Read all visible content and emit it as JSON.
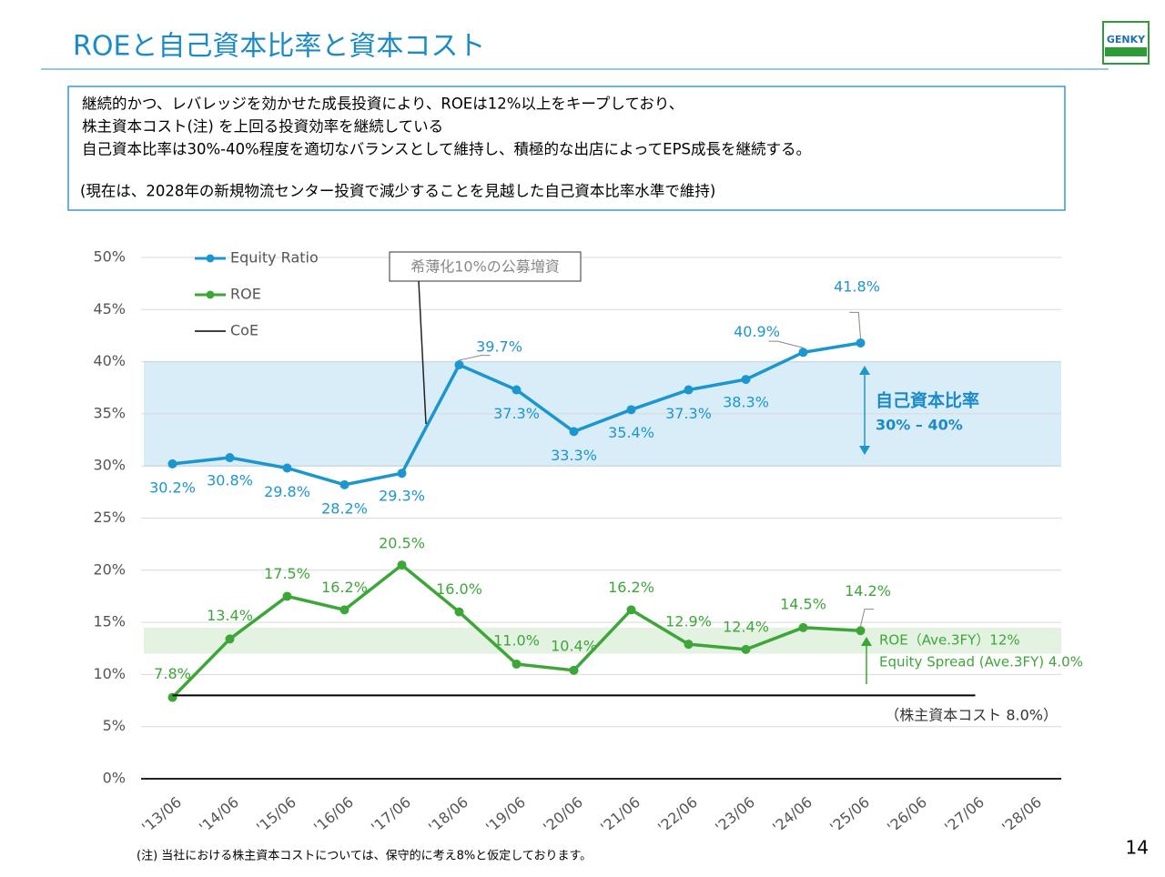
{
  "header": {
    "title": "ROEと自己資本比率と資本コスト",
    "logo": "GENKY"
  },
  "text_box": {
    "lines": [
      "継続的かつ、レバレッジを効かせた成長投資により、ROEは12%以上をキープしており、",
      "株主資本コスト(注) を上回る投資効率を継続している",
      "自己資本比率は30%-40%程度を適切なバランスとして維持し、積極的な出店によってEPS成長を継続する。",
      "(現在は、2028年の新規物流センター投資で減少することを見越した自己資本比率水準で維持)"
    ]
  },
  "footnote": "(注) 当社における株主資本コストについては、保守的に考え8%と仮定しております。",
  "page_number": "14",
  "chart_data": {
    "type": "line",
    "categories": [
      "'13/06",
      "'14/06",
      "'15/06",
      "'16/06",
      "'17/06",
      "'18/06",
      "'19/06",
      "'20/06",
      "'21/06",
      "'22/06",
      "'23/06",
      "'24/06",
      "'25/06",
      "'26/06",
      "'27/06",
      "'28/06"
    ],
    "series": [
      {
        "name": "Equity Ratio",
        "color": "#1b96cf",
        "values": [
          30.2,
          30.8,
          29.8,
          28.2,
          29.3,
          39.7,
          37.3,
          33.3,
          35.4,
          37.3,
          38.3,
          40.9,
          41.8,
          null,
          null,
          null
        ],
        "value_labels": [
          "30.2%",
          "30.8%",
          "29.8%",
          "28.2%",
          "29.3%",
          "39.7%",
          "37.3%",
          "33.3%",
          "35.4%",
          "37.3%",
          "38.3%",
          "40.9%",
          "41.8%",
          null,
          null,
          null
        ]
      },
      {
        "name": "ROE",
        "color": "#3da639",
        "values": [
          7.8,
          13.4,
          17.5,
          16.2,
          20.5,
          16.0,
          11.0,
          10.4,
          16.2,
          12.9,
          12.4,
          14.5,
          14.2,
          null,
          null,
          null
        ],
        "value_labels": [
          "7.8%",
          "13.4%",
          "17.5%",
          "16.2%",
          "20.5%",
          "16.0%",
          "11.0%",
          "10.4%",
          "16.2%",
          "12.9%",
          "12.4%",
          "14.5%",
          "14.2%",
          null,
          null,
          null
        ]
      },
      {
        "name": "CoE",
        "color": "#000000",
        "values": [
          8,
          8,
          8,
          8,
          8,
          8,
          8,
          8,
          8,
          8,
          8,
          8,
          8,
          8,
          8,
          null
        ]
      }
    ],
    "ylim": [
      0,
      50
    ],
    "yticks": [
      {
        "value": 0,
        "label": "0%"
      },
      {
        "value": 5,
        "label": "5%"
      },
      {
        "value": 10,
        "label": "10%"
      },
      {
        "value": 15,
        "label": "15%"
      },
      {
        "value": 20,
        "label": "20%"
      },
      {
        "value": 25,
        "label": "25%"
      },
      {
        "value": 30,
        "label": "30%"
      },
      {
        "value": 35,
        "label": "35%"
      },
      {
        "value": 40,
        "label": "40%"
      },
      {
        "value": 45,
        "label": "45%"
      },
      {
        "value": 50,
        "label": "50%"
      }
    ],
    "grid": true,
    "legend": "upper left",
    "bands": [
      {
        "from": 30,
        "to": 40,
        "color": "#d9edf8"
      },
      {
        "from": 12,
        "to": 14.5,
        "color": "#e4f3e1"
      }
    ],
    "annotations": [
      "希薄化10%の公募増資",
      "自己資本比率",
      "30% – 40%",
      "ROE（Ave.3FY）12%",
      "Equity Spread (Ave.3FY) 4.0%",
      "（株主資本コスト 8.0%）"
    ]
  }
}
